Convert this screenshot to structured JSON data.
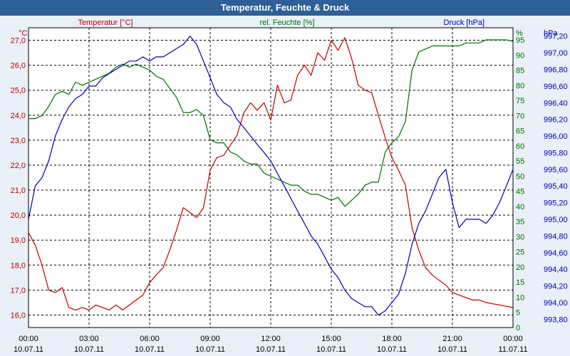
{
  "chart_data": {
    "type": "line",
    "title": "Temperatur, Feuchte & Druck",
    "x_hours": [
      0,
      0.33,
      0.67,
      1,
      1.33,
      1.67,
      2,
      2.33,
      2.67,
      3,
      3.33,
      3.67,
      4,
      4.33,
      4.67,
      5,
      5.33,
      5.67,
      6,
      6.33,
      6.67,
      7,
      7.33,
      7.67,
      8,
      8.33,
      8.67,
      9,
      9.33,
      9.67,
      10,
      10.33,
      10.67,
      11,
      11.33,
      11.67,
      12,
      12.33,
      12.67,
      13,
      13.33,
      13.67,
      14,
      14.33,
      14.67,
      15,
      15.33,
      15.67,
      16,
      16.33,
      16.67,
      17,
      17.33,
      17.67,
      18,
      18.33,
      18.67,
      19,
      19.33,
      19.67,
      20,
      20.33,
      20.67,
      21,
      21.33,
      21.67,
      22,
      22.33,
      22.67,
      23,
      23.33,
      23.67,
      24
    ],
    "series": [
      {
        "name": "Temperatur [°C]",
        "axis": "left",
        "color": "#c00000",
        "values": [
          19.3,
          18.8,
          18.0,
          17.0,
          16.9,
          17.1,
          16.3,
          16.2,
          16.3,
          16.2,
          16.4,
          16.3,
          16.2,
          16.4,
          16.2,
          16.4,
          16.6,
          16.8,
          17.3,
          17.6,
          17.9,
          18.6,
          19.4,
          20.3,
          20.1,
          19.9,
          20.3,
          21.8,
          22.3,
          22.4,
          22.8,
          23.2,
          24.1,
          24.5,
          24.2,
          24.5,
          23.8,
          25.2,
          24.5,
          24.6,
          25.6,
          26.0,
          25.6,
          26.5,
          26.2,
          27.0,
          26.6,
          27.1,
          26.3,
          25.2,
          25.0,
          24.9,
          24.0,
          23.1,
          22.3,
          21.8,
          21.2,
          19.5,
          18.6,
          17.9,
          17.6,
          17.4,
          17.2,
          16.9,
          16.8,
          16.7,
          16.6,
          16.6,
          16.5,
          16.45,
          16.4,
          16.35,
          16.3
        ]
      },
      {
        "name": "rel. Feuchte [%]",
        "axis": "right-1",
        "color": "#007000",
        "values": [
          69,
          69,
          70,
          73,
          77,
          78,
          77,
          81,
          80,
          81,
          82,
          83,
          84,
          86,
          87,
          86,
          87,
          86,
          85,
          83,
          82,
          79,
          76,
          71,
          71,
          72,
          70,
          62,
          61,
          61,
          58,
          57,
          55,
          54,
          54,
          51,
          50,
          49,
          48,
          47,
          47,
          45,
          44,
          44,
          43,
          42,
          43,
          40,
          42,
          44,
          47,
          48,
          48,
          58,
          61,
          63,
          68,
          85,
          91,
          92,
          93,
          93,
          93,
          93,
          93,
          94,
          94,
          94,
          95,
          95,
          95,
          95,
          94.5
        ]
      },
      {
        "name": "Druck [hPa]",
        "axis": "right-2",
        "color": "#0000b0",
        "values": [
          995.0,
          995.4,
          995.5,
          995.7,
          996.0,
          996.2,
          996.35,
          996.45,
          996.5,
          996.6,
          996.6,
          996.7,
          996.75,
          996.8,
          996.85,
          996.9,
          996.9,
          996.95,
          996.9,
          996.95,
          996.95,
          997.0,
          997.05,
          997.1,
          997.2,
          997.1,
          996.9,
          996.7,
          996.5,
          996.4,
          996.35,
          996.2,
          996.1,
          996.0,
          995.9,
          995.8,
          995.7,
          995.55,
          995.4,
          995.25,
          995.1,
          994.95,
          994.8,
          994.7,
          994.55,
          994.4,
          994.3,
          994.15,
          994.05,
          994.0,
          993.95,
          993.95,
          993.85,
          993.9,
          994.0,
          994.1,
          994.35,
          994.7,
          994.95,
          995.1,
          995.3,
          995.5,
          995.6,
          995.2,
          994.9,
          995.0,
          995.0,
          995.0,
          994.95,
          995.05,
          995.2,
          995.4,
          995.6
        ]
      }
    ],
    "legend": [
      "Temperatur [°C]",
      "rel. Feuchte [%]",
      "Druck [hPa]"
    ],
    "axes": {
      "left": {
        "unit": "°C",
        "ylim": [
          15.5,
          27.5
        ],
        "ticks": [
          "16,0",
          "17,0",
          "18,0",
          "19,0",
          "20,0",
          "21,0",
          "22,0",
          "23,0",
          "24,0",
          "25,0",
          "26,0",
          "27,0"
        ],
        "tick_values": [
          16,
          17,
          18,
          19,
          20,
          21,
          22,
          23,
          24,
          25,
          26,
          27
        ]
      },
      "right1": {
        "unit": "%",
        "ylim": [
          0,
          99
        ],
        "ticks": [
          "0",
          "5",
          "10",
          "15",
          "20",
          "25",
          "30",
          "35",
          "40",
          "45",
          "50",
          "55",
          "60",
          "65",
          "70",
          "75",
          "80",
          "85",
          "90",
          "95"
        ],
        "tick_values": [
          0,
          5,
          10,
          15,
          20,
          25,
          30,
          35,
          40,
          45,
          50,
          55,
          60,
          65,
          70,
          75,
          80,
          85,
          90,
          95
        ]
      },
      "right2": {
        "unit": "hPa",
        "ylim": [
          993.7,
          997.3
        ],
        "ticks": [
          "993,80",
          "994,00",
          "994,20",
          "994,40",
          "994,60",
          "994,80",
          "995,00",
          "995,20",
          "995,40",
          "995,60",
          "995,80",
          "996,00",
          "996,20",
          "996,40",
          "996,60",
          "996,80",
          "997,00",
          "997,20"
        ],
        "tick_values": [
          993.8,
          994.0,
          994.2,
          994.4,
          994.6,
          994.8,
          995.0,
          995.2,
          995.4,
          995.6,
          995.8,
          996.0,
          996.2,
          996.4,
          996.6,
          996.8,
          997.0,
          997.2
        ]
      },
      "x": {
        "time_labels": [
          "00:00",
          "03:00",
          "06:00",
          "09:00",
          "12:00",
          "15:00",
          "18:00",
          "21:00",
          "00:00"
        ],
        "date_labels": [
          "10.07.11",
          "10.07.11",
          "10.07.11",
          "10.07.11",
          "10.07.11",
          "10.07.11",
          "10.07.11",
          "10.07.11",
          "11.07.11"
        ],
        "tick_hours": [
          0,
          3,
          6,
          9,
          12,
          15,
          18,
          21,
          24
        ],
        "xlim": [
          0,
          24
        ]
      }
    },
    "grid": true
  },
  "colors": {
    "temperature": "#c00000",
    "humidity": "#007000",
    "pressure": "#0000b0",
    "titlebar": "#2e5f95",
    "background": "#e9f0f7"
  }
}
